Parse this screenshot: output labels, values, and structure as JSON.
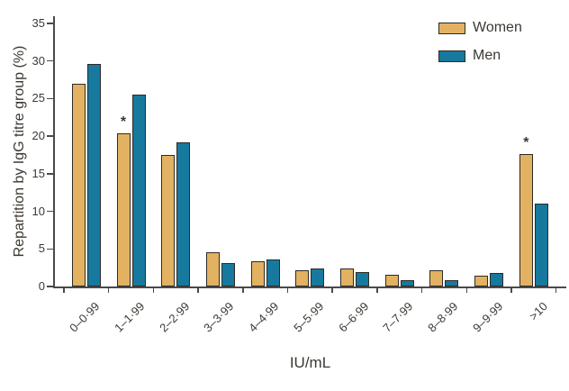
{
  "chart_data": {
    "type": "bar",
    "title": "",
    "xlabel": "IU/mL",
    "ylabel": "Repartition by IgG titre group (%)",
    "ylim": [
      0,
      35
    ],
    "yticks": [
      0,
      5,
      10,
      15,
      20,
      25,
      30,
      35
    ],
    "grid": false,
    "legend_position": "top-right",
    "categories": [
      "0–0·99",
      "1–1·99",
      "2–2·99",
      "3–3·99",
      "4–4·99",
      "5–5·99",
      "6–6·99",
      "7–7·99",
      "8–8·99",
      "9–9·99",
      ">10"
    ],
    "series": [
      {
        "name": "Women",
        "color": "#E2B262",
        "values": [
          27.0,
          20.4,
          17.5,
          4.6,
          3.3,
          2.1,
          2.4,
          1.5,
          2.1,
          1.4,
          17.6
        ],
        "annotations": [
          "",
          "*",
          "",
          "",
          "",
          "",
          "",
          "",
          "",
          "",
          "*"
        ]
      },
      {
        "name": "Men",
        "color": "#17799E",
        "values": [
          29.6,
          25.5,
          19.2,
          3.1,
          3.6,
          2.4,
          1.9,
          0.8,
          0.8,
          1.8,
          11.0
        ],
        "annotations": [
          "",
          "",
          "",
          "",
          "",
          "",
          "",
          "",
          "",
          "",
          ""
        ]
      }
    ],
    "colors": {
      "bar_outline": "#2e2a25",
      "axis": "#4a4a4a",
      "text": "#3d3833",
      "background": "#ffffff"
    }
  }
}
